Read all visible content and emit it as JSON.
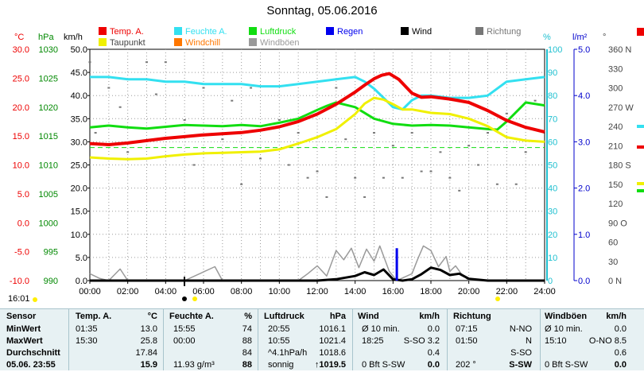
{
  "title": "Sonntag, 05.06.2016",
  "time_label": "16:01",
  "colors": {
    "temp": "#ee0000",
    "feuchte": "#33e0f0",
    "luftdruck": "#11dd11",
    "regen": "#0000ee",
    "wind": "#000000",
    "richtung": "#777777",
    "taupunkt": "#f0f000",
    "windchill": "#ff7700",
    "windboen": "#9a9a9a",
    "axis_temp": "#ee0000",
    "axis_hpa": "#008800",
    "axis_pct": "#20c0d0",
    "axis_rain": "#0000cc"
  },
  "legend": [
    {
      "label": "Temp. A.",
      "color": "#ee0000"
    },
    {
      "label": "Feuchte A.",
      "color": "#33e0f0"
    },
    {
      "label": "Luftdruck",
      "color": "#11dd11"
    },
    {
      "label": "Regen",
      "color": "#0000ee"
    },
    {
      "label": "Wind",
      "color": "#000000"
    },
    {
      "label": "Richtung",
      "color": "#777777"
    },
    {
      "label": "Taupunkt",
      "color": "#f0f000"
    },
    {
      "label": "Windchill",
      "color": "#ff7700"
    },
    {
      "label": "Windböen",
      "color": "#9a9a9a"
    }
  ],
  "axis_units": [
    "°C",
    "hPa",
    "km/h",
    "%",
    "l/m²",
    "°"
  ],
  "chart_data": {
    "type": "line",
    "title": "Sonntag, 05.06.2016",
    "xlabel": "",
    "x_ticks": [
      "00:00",
      "02:00",
      "04:00",
      "06:00",
      "08:00",
      "10:00",
      "12:00",
      "14:00",
      "16:00",
      "18:00",
      "20:00",
      "22:00",
      "24:00"
    ],
    "x_range": [
      0,
      24
    ],
    "grid": true,
    "axes": {
      "temp": {
        "unit": "°C",
        "range": [
          -10,
          30
        ],
        "ticks": [
          "-10.0",
          "-5.0",
          "0.0",
          "5.0",
          "10.0",
          "15.0",
          "20.0",
          "25.0",
          "30.0"
        ]
      },
      "pressure": {
        "unit": "hPa",
        "range": [
          990,
          1030
        ],
        "ticks": [
          "990",
          "995",
          "1000",
          "1005",
          "1010",
          "1015",
          "1020",
          "1025",
          "1030"
        ]
      },
      "wind": {
        "unit": "km/h",
        "range": [
          0,
          50
        ],
        "ticks": [
          "0.0",
          "5.0",
          "10.0",
          "15.0",
          "20.0",
          "25.0",
          "30.0",
          "35.0",
          "40.0",
          "45.0",
          "50.0"
        ]
      },
      "humidity": {
        "unit": "%",
        "range": [
          0,
          100
        ],
        "ticks": [
          "0",
          "10",
          "20",
          "30",
          "40",
          "50",
          "60",
          "70",
          "80",
          "90",
          "100"
        ]
      },
      "rain": {
        "unit": "l/m²",
        "range": [
          0,
          5
        ],
        "ticks": [
          "0.0",
          "1.0",
          "2.0",
          "3.0",
          "4.0",
          "5.0"
        ]
      },
      "direction": {
        "unit": "°",
        "range": [
          0,
          360
        ],
        "ticks": [
          "0 N",
          "30",
          "60",
          "90 O",
          "120",
          "150",
          "180 S",
          "210",
          "240",
          "270 W",
          "300",
          "330",
          "360 N"
        ]
      }
    },
    "series": [
      {
        "name": "Temp. A.",
        "axis": "temp",
        "x": [
          0,
          1,
          2,
          3,
          4,
          5,
          6,
          7,
          8,
          9,
          10,
          11,
          12,
          13,
          14,
          14.5,
          15,
          15.4,
          15.8,
          16.3,
          17,
          17.5,
          18,
          19,
          20,
          21,
          22,
          23,
          24
        ],
        "y": [
          13.7,
          13.5,
          13.8,
          14.2,
          14.6,
          14.9,
          15.2,
          15.4,
          15.6,
          16.0,
          16.6,
          17.5,
          18.8,
          20.5,
          22.6,
          23.8,
          24.9,
          25.5,
          25.8,
          24.8,
          22.4,
          21.7,
          21.8,
          21.4,
          20.8,
          19.4,
          17.7,
          16.5,
          15.7
        ]
      },
      {
        "name": "Taupunkt",
        "axis": "temp",
        "x": [
          0,
          1,
          2,
          3,
          4,
          5,
          6,
          7,
          8,
          9,
          10,
          11,
          12,
          13,
          14,
          14.5,
          15,
          15.5,
          16,
          16.5,
          17,
          18,
          19,
          20,
          21,
          22,
          23,
          24
        ],
        "y": [
          11.3,
          11.1,
          11.0,
          11.1,
          11.5,
          11.8,
          12.0,
          12.1,
          12.2,
          12.3,
          12.7,
          13.7,
          14.8,
          16.2,
          18.8,
          20.6,
          21.6,
          21.3,
          20.5,
          19.6,
          19.6,
          19.0,
          18.8,
          18.0,
          16.7,
          14.8,
          14.2,
          14.0
        ]
      },
      {
        "name": "Feuchte A.",
        "axis": "humidity",
        "x": [
          0,
          1,
          2,
          3,
          4,
          5,
          6,
          7,
          8,
          9,
          10,
          11,
          12,
          13,
          14,
          14.5,
          15,
          15.5,
          16,
          16.5,
          17,
          17.5,
          18,
          19,
          20,
          21,
          22,
          23,
          24
        ],
        "y": [
          88,
          88,
          87,
          87,
          86,
          86,
          85,
          85,
          85,
          84,
          84,
          85,
          86,
          87,
          88,
          86,
          83,
          79,
          75,
          74,
          78,
          80,
          80,
          79,
          79,
          80,
          86,
          87,
          88
        ]
      },
      {
        "name": "Luftdruck",
        "axis": "pressure",
        "x": [
          0,
          1,
          2,
          3,
          4,
          5,
          6,
          7,
          8,
          9,
          10,
          11,
          12,
          12.5,
          13,
          14,
          15,
          16,
          17,
          18,
          19,
          20,
          21,
          21.5,
          22,
          23,
          24
        ],
        "y": [
          1016.5,
          1016.8,
          1016.5,
          1016.3,
          1016.6,
          1016.9,
          1016.8,
          1016.7,
          1016.9,
          1016.7,
          1017.3,
          1018.0,
          1019.5,
          1020.2,
          1020.8,
          1020.0,
          1018.0,
          1017.1,
          1016.8,
          1016.9,
          1016.8,
          1016.5,
          1016.2,
          1016.1,
          1017.5,
          1020.8,
          1020.3
        ]
      },
      {
        "name": "Wind",
        "axis": "wind",
        "x": [
          0,
          2,
          4,
          6,
          8,
          10,
          11,
          12,
          13,
          14,
          14.5,
          15,
          15.5,
          16,
          16.5,
          17,
          17.5,
          18,
          18.5,
          19,
          19.5,
          20,
          21,
          22,
          24
        ],
        "y": [
          0,
          0,
          0,
          0,
          0,
          0,
          0,
          0,
          0.3,
          1.0,
          1.8,
          1.2,
          2.4,
          0.3,
          0,
          0.3,
          1.4,
          2.8,
          2.3,
          1.2,
          1.5,
          0.4,
          0,
          0,
          0
        ]
      },
      {
        "name": "Windböen",
        "axis": "wind",
        "x": [
          0,
          0.5,
          1,
          1.6,
          2,
          5,
          6.6,
          7,
          8,
          10,
          11,
          11.5,
          12,
          12.5,
          13,
          13.4,
          13.8,
          14.2,
          14.6,
          15,
          15.3,
          15.8,
          16.2,
          17,
          17.3,
          17.6,
          18,
          18.4,
          18.8,
          19,
          19.3,
          19.6,
          20,
          21,
          22,
          24
        ],
        "y": [
          1.5,
          0.5,
          0,
          2.5,
          0,
          0,
          3,
          0,
          0,
          0,
          0,
          1.5,
          3.2,
          1,
          6.5,
          4.5,
          7,
          2.8,
          6.8,
          4.2,
          7.5,
          2,
          0,
          1.5,
          4.6,
          7.5,
          6.5,
          3,
          5.2,
          2,
          3.2,
          1.5,
          0,
          0,
          0,
          0
        ]
      },
      {
        "name": "Regen",
        "axis": "rain",
        "x": [
          16.2
        ],
        "y": [
          0.7
        ]
      },
      {
        "name": "Richtung",
        "axis": "direction",
        "x": [
          0,
          0.3,
          1,
          1.6,
          2,
          3,
          3.5,
          4,
          5,
          5.5,
          6,
          7,
          7.5,
          8,
          8.5,
          9,
          10,
          10.5,
          11,
          11.5,
          12,
          12.5,
          13,
          13.5,
          14,
          14.5,
          15,
          15.5,
          16,
          16.5,
          17,
          17.5,
          18,
          18.5,
          19,
          19.5,
          20,
          20.5,
          21,
          21.5,
          22,
          22.5,
          23,
          23.5
        ],
        "y": [
          340,
          230,
          300,
          270,
          200,
          340,
          290,
          340,
          250,
          180,
          300,
          220,
          280,
          150,
          300,
          190,
          250,
          180,
          230,
          160,
          170,
          130,
          300,
          220,
          160,
          130,
          230,
          160,
          210,
          160,
          230,
          170,
          170,
          200,
          160,
          140,
          210,
          180,
          230,
          150,
          260,
          150,
          200,
          280
        ]
      }
    ],
    "reference_lines": [
      {
        "axis": "temp",
        "value": 13.0,
        "style": "dashed",
        "color": "#11dd11"
      }
    ]
  },
  "stats": {
    "headers": [
      "Sensor",
      "Temp. A.",
      "°C",
      "Feuchte A.",
      "%",
      "Luftdruck",
      "hPa",
      "Wind",
      "km/h",
      "Richtung",
      "Windböen",
      "km/h"
    ],
    "rows": [
      {
        "label": "MinWert",
        "temp_time": "01:35",
        "temp_val": "13.0",
        "hum_time": "15:55",
        "hum_val": "74",
        "press_time": "20:55",
        "press_val": "1016.1",
        "wind_label": "Ø 10 min.",
        "wind_val": "0.0",
        "dir_time": "07:15",
        "dir_val": "N-NO",
        "gust_label": "Ø 10 min.",
        "gust_val": "0.0"
      },
      {
        "label": "MaxWert",
        "temp_time": "15:30",
        "temp_val": "25.8",
        "hum_time": "00:00",
        "hum_val": "88",
        "press_time": "10:55",
        "press_val": "1021.4",
        "wind_label": "18:25",
        "wind_val": "S-SO 3.2",
        "dir_time": "01:50",
        "dir_val": "N",
        "gust_label": "15:10",
        "gust_val": "O-NO 8.5"
      },
      {
        "label": "Durchschnitt",
        "temp_time": "",
        "temp_val": "17.84",
        "hum_time": "",
        "hum_val": "84",
        "press_time": "^4.1hPa/h",
        "press_val": "1018.6",
        "wind_label": "",
        "wind_val": "0.4",
        "dir_time": "",
        "dir_val": "S-SO",
        "gust_label": "",
        "gust_val": "0.6"
      },
      {
        "label": "05.06. 23:55",
        "temp_time": "",
        "temp_val": "15.9",
        "hum_time": "11.93 g/m³",
        "hum_val": "88",
        "press_time": "sonnig",
        "press_val": "↑1019.5",
        "wind_label": "0 Bft S-SW",
        "wind_val": "0.0",
        "dir_time": "202 °",
        "dir_val": "S-SW",
        "gust_label": "0 Bft S-SW",
        "gust_val": "0.0"
      }
    ]
  }
}
